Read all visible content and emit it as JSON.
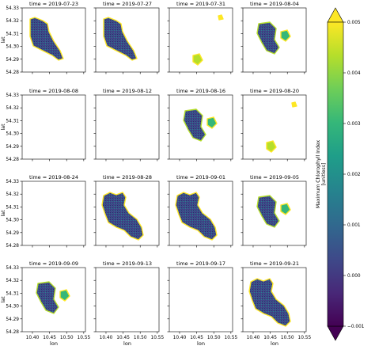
{
  "chart_data": {
    "type": "heatmap",
    "variable": "Maximum Chlorophyll Index",
    "colorbar": {
      "label_line1": "Maximum Chlorophyll Index",
      "label_line2": "[unitless]",
      "min": -0.001,
      "max": 0.005,
      "extend": "both",
      "tick_values": [
        -0.001,
        0.0,
        0.001,
        0.002,
        0.003,
        0.004,
        0.005
      ],
      "tick_labels": [
        "−0.001",
        "0.000",
        "0.001",
        "0.002",
        "0.003",
        "0.004",
        "0.005"
      ],
      "colormap": "viridis",
      "colors": [
        "#440154",
        "#482878",
        "#3e4989",
        "#31688e",
        "#26828e",
        "#1f9e89",
        "#35b779",
        "#6ece58",
        "#b5de2b",
        "#fde725"
      ]
    },
    "xlabel": "lon",
    "ylabel": "lat",
    "xlim": [
      10.37,
      10.555
    ],
    "ylim": [
      54.28,
      54.33
    ],
    "x_ticks": [
      10.4,
      10.45,
      10.5,
      10.55
    ],
    "x_tick_labels": [
      "10.40",
      "10.45",
      "10.50",
      "10.55"
    ],
    "y_ticks": [
      54.28,
      54.29,
      54.3,
      54.31,
      54.32,
      54.33
    ],
    "y_tick_labels": [
      "54.28",
      "54.29",
      "54.30",
      "54.31",
      "54.32",
      "54.33"
    ],
    "panels": [
      {
        "title": "time = 2019-07-23",
        "coverage": "full-north"
      },
      {
        "title": "time = 2019-07-27",
        "coverage": "full-north"
      },
      {
        "title": "time = 2019-07-31",
        "coverage": "sparse"
      },
      {
        "title": "time = 2019-08-04",
        "coverage": "partial"
      },
      {
        "title": "time = 2019-08-08",
        "coverage": "none"
      },
      {
        "title": "time = 2019-08-12",
        "coverage": "none"
      },
      {
        "title": "time = 2019-08-16",
        "coverage": "partial"
      },
      {
        "title": "time = 2019-08-20",
        "coverage": "sparse"
      },
      {
        "title": "time = 2019-08-24",
        "coverage": "none"
      },
      {
        "title": "time = 2019-08-28",
        "coverage": "full"
      },
      {
        "title": "time = 2019-09-01",
        "coverage": "full"
      },
      {
        "title": "time = 2019-09-05",
        "coverage": "partial"
      },
      {
        "title": "time = 2019-09-09",
        "coverage": "partial"
      },
      {
        "title": "time = 2019-09-13",
        "coverage": "none"
      },
      {
        "title": "time = 2019-09-17",
        "coverage": "none"
      },
      {
        "title": "time = 2019-09-21",
        "coverage": "full"
      }
    ]
  }
}
